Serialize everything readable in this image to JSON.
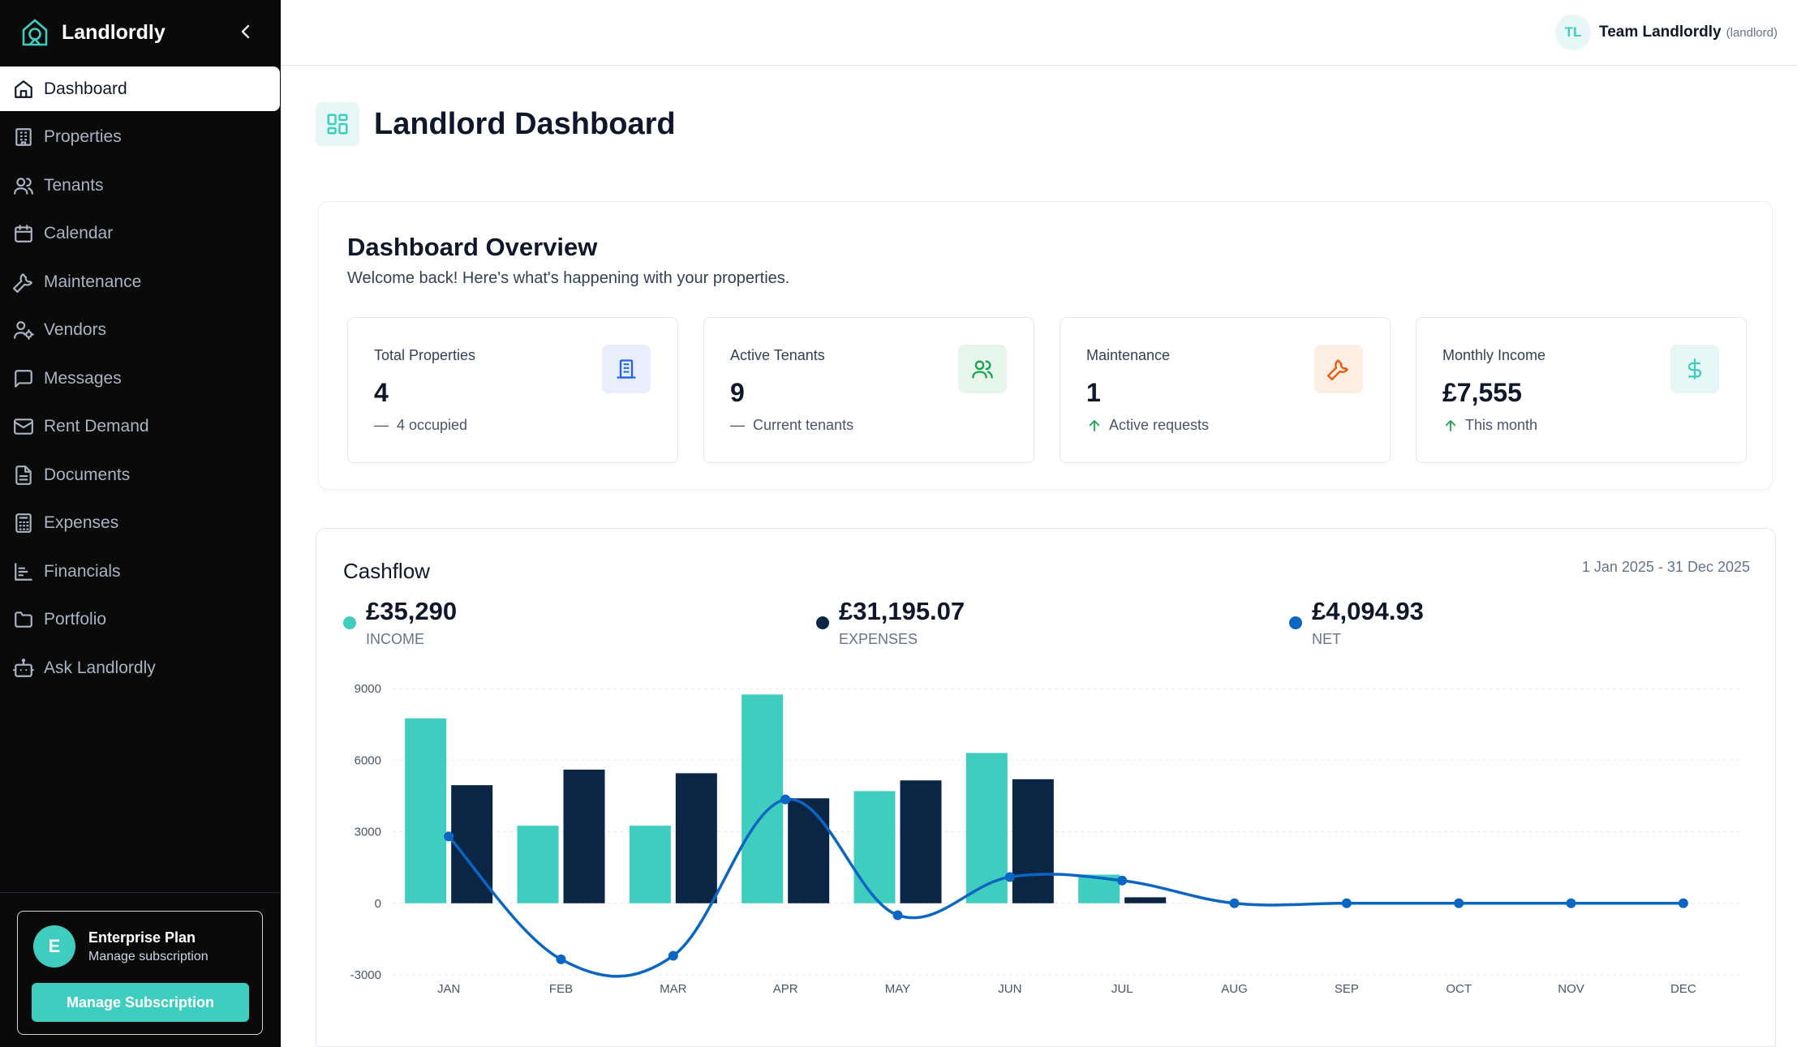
{
  "sidebar": {
    "brand": "Landlordly",
    "items": [
      {
        "label": "Dashboard",
        "icon": "home-icon"
      },
      {
        "label": "Properties",
        "icon": "building-icon"
      },
      {
        "label": "Tenants",
        "icon": "users-icon"
      },
      {
        "label": "Calendar",
        "icon": "calendar-icon"
      },
      {
        "label": "Maintenance",
        "icon": "wrench-icon"
      },
      {
        "label": "Vendors",
        "icon": "user-cog-icon"
      },
      {
        "label": "Messages",
        "icon": "message-icon"
      },
      {
        "label": "Rent Demand",
        "icon": "mail-icon"
      },
      {
        "label": "Documents",
        "icon": "document-icon"
      },
      {
        "label": "Expenses",
        "icon": "calculator-icon"
      },
      {
        "label": "Financials",
        "icon": "bar-chart-icon"
      },
      {
        "label": "Portfolio",
        "icon": "folder-icon"
      },
      {
        "label": "Ask Landlordly",
        "icon": "bot-icon"
      }
    ],
    "plan": {
      "avatar": "E",
      "title": "Enterprise Plan",
      "subtitle": "Manage subscription",
      "button": "Manage Subscription"
    }
  },
  "topbar": {
    "avatar": "TL",
    "user_name": "Team Landlordly",
    "user_role": "(landlord)"
  },
  "page": {
    "title": "Landlord Dashboard"
  },
  "overview": {
    "title": "Dashboard Overview",
    "subtitle": "Welcome back! Here's what's happening with your properties.",
    "stats": [
      {
        "label": "Total Properties",
        "value": "4",
        "note": "4 occupied",
        "trend": "neutral",
        "icon": "building-icon",
        "icon_color": "#2563eb",
        "icon_bg": "#e8eefc"
      },
      {
        "label": "Active Tenants",
        "value": "9",
        "note": "Current tenants",
        "trend": "neutral",
        "icon": "users-icon",
        "icon_color": "#16a34a",
        "icon_bg": "#e6f6ec"
      },
      {
        "label": "Maintenance",
        "value": "1",
        "note": "Active requests",
        "trend": "up",
        "icon": "wrench-icon",
        "icon_color": "#ea580c",
        "icon_bg": "#fdeee4"
      },
      {
        "label": "Monthly Income",
        "value": "£7,555",
        "note": "This month",
        "trend": "up",
        "icon": "dollar-icon",
        "icon_color": "#3ecdbf",
        "icon_bg": "#e6f7f5"
      }
    ]
  },
  "cashflow": {
    "title": "Cashflow",
    "range": "1 Jan 2025 - 31 Dec 2025",
    "legend": [
      {
        "value": "£35,290",
        "label": "INCOME",
        "color": "#3ecdbf"
      },
      {
        "value": "£31,195.07",
        "label": "EXPENSES",
        "color": "#0b2545"
      },
      {
        "value": "£4,094.93",
        "label": "NET",
        "color": "#0a66c2"
      }
    ]
  },
  "chart_data": {
    "type": "bar",
    "categories": [
      "JAN",
      "FEB",
      "MAR",
      "APR",
      "MAY",
      "JUN",
      "JUL",
      "AUG",
      "SEP",
      "OCT",
      "NOV",
      "DEC"
    ],
    "series": [
      {
        "name": "INCOME",
        "type": "bar",
        "color": "#3ecdbf",
        "values": [
          7750,
          3250,
          3250,
          8750,
          4700,
          6300,
          1200,
          0,
          0,
          0,
          0,
          0
        ]
      },
      {
        "name": "EXPENSES",
        "type": "bar",
        "color": "#0b2545",
        "values": [
          4950,
          5600,
          5450,
          4400,
          5150,
          5200,
          250,
          0,
          0,
          0,
          0,
          0
        ]
      },
      {
        "name": "NET",
        "type": "line",
        "color": "#0a66c2",
        "values": [
          2800,
          -2350,
          -2200,
          4350,
          -500,
          1100,
          950,
          0,
          0,
          0,
          0,
          0
        ]
      }
    ],
    "yticks": [
      9000,
      6000,
      3000,
      0,
      -3000
    ],
    "ylim": [
      -3000,
      9000
    ],
    "grid": true
  }
}
